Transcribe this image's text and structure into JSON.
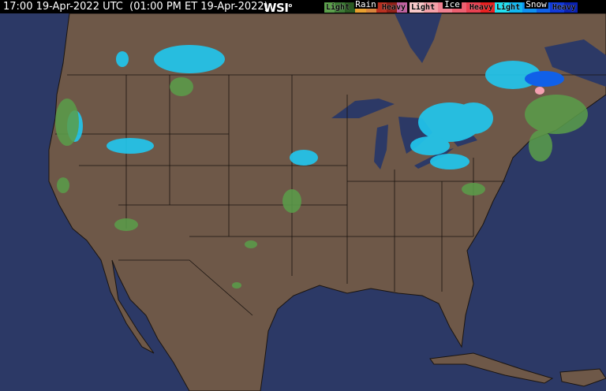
{
  "header": {
    "timestamp": "17:00 19-Apr-2022 UTC  (01:00 PM ET 19-Apr-2022)",
    "logo": "WSI"
  },
  "legend": [
    {
      "title": "Rain",
      "light": "Light",
      "heavy": "Heavy",
      "colors": [
        "#5a9e4a",
        "#3c7a34",
        "#2a5a22",
        "#e8a030",
        "#d8843c",
        "#b83020",
        "#902018",
        "#c060a0"
      ]
    },
    {
      "title": "Ice",
      "light": "Light",
      "heavy": "Heavy",
      "colors": [
        "#f8c8c8",
        "#f4a0a8",
        "#f08090",
        "#ec6070",
        "#e84050",
        "#e82020"
      ]
    },
    {
      "title": "Snow",
      "light": "Light",
      "heavy": "Heavy",
      "colors": [
        "#20e0f0",
        "#10b8f0",
        "#1090f0",
        "#1060e8",
        "#1038d8",
        "#0820b0"
      ]
    }
  ],
  "colors": {
    "ocean": "#2c3966",
    "land": "#6e5848",
    "border": "#1a1410",
    "rain_light": "#5a9e4a",
    "snow_light": "#20c8f0",
    "snow": "#1098f0",
    "ice": "#f4a0b0"
  }
}
